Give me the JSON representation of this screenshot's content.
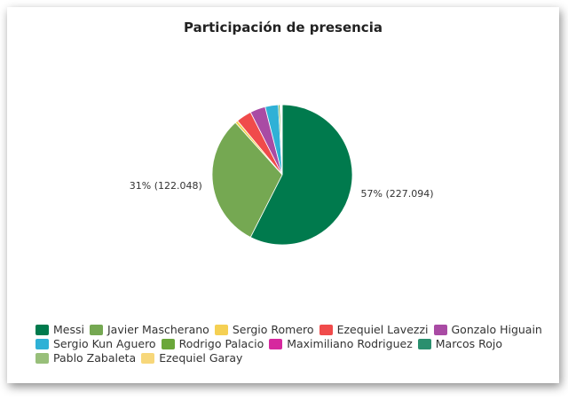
{
  "chart_data": {
    "type": "pie",
    "title": "Participación de presencia",
    "slices": [
      {
        "name": "Messi",
        "value": 227.094,
        "percent_label": "57% (227.094)",
        "color": "#007a4d"
      },
      {
        "name": "Javier Mascherano",
        "value": 122.048,
        "percent_label": "31% (122.048)",
        "color": "#75a852"
      },
      {
        "name": "Sergio Romero",
        "value": 2.5,
        "color": "#f5d053"
      },
      {
        "name": "Ezequiel Lavezzi",
        "value": 14.0,
        "color": "#f04b4b"
      },
      {
        "name": "Gonzalo Higuain",
        "value": 14.0,
        "color": "#a94ba4"
      },
      {
        "name": "Sergio Kun Aguero",
        "value": 12.0,
        "color": "#2fb1d6"
      },
      {
        "name": "Rodrigo Palacio",
        "value": 1.5,
        "color": "#6aa73a"
      },
      {
        "name": "Maximiliano Rodriguez",
        "value": 0.5,
        "color": "#d6289e"
      },
      {
        "name": "Marcos Rojo",
        "value": 0.5,
        "color": "#2a8f6e"
      },
      {
        "name": "Pablo Zabaleta",
        "value": 0.5,
        "color": "#98bf7a"
      },
      {
        "name": "Ezequiel Garay",
        "value": 0.5,
        "color": "#f7d77a"
      }
    ],
    "legend_position": "bottom"
  }
}
